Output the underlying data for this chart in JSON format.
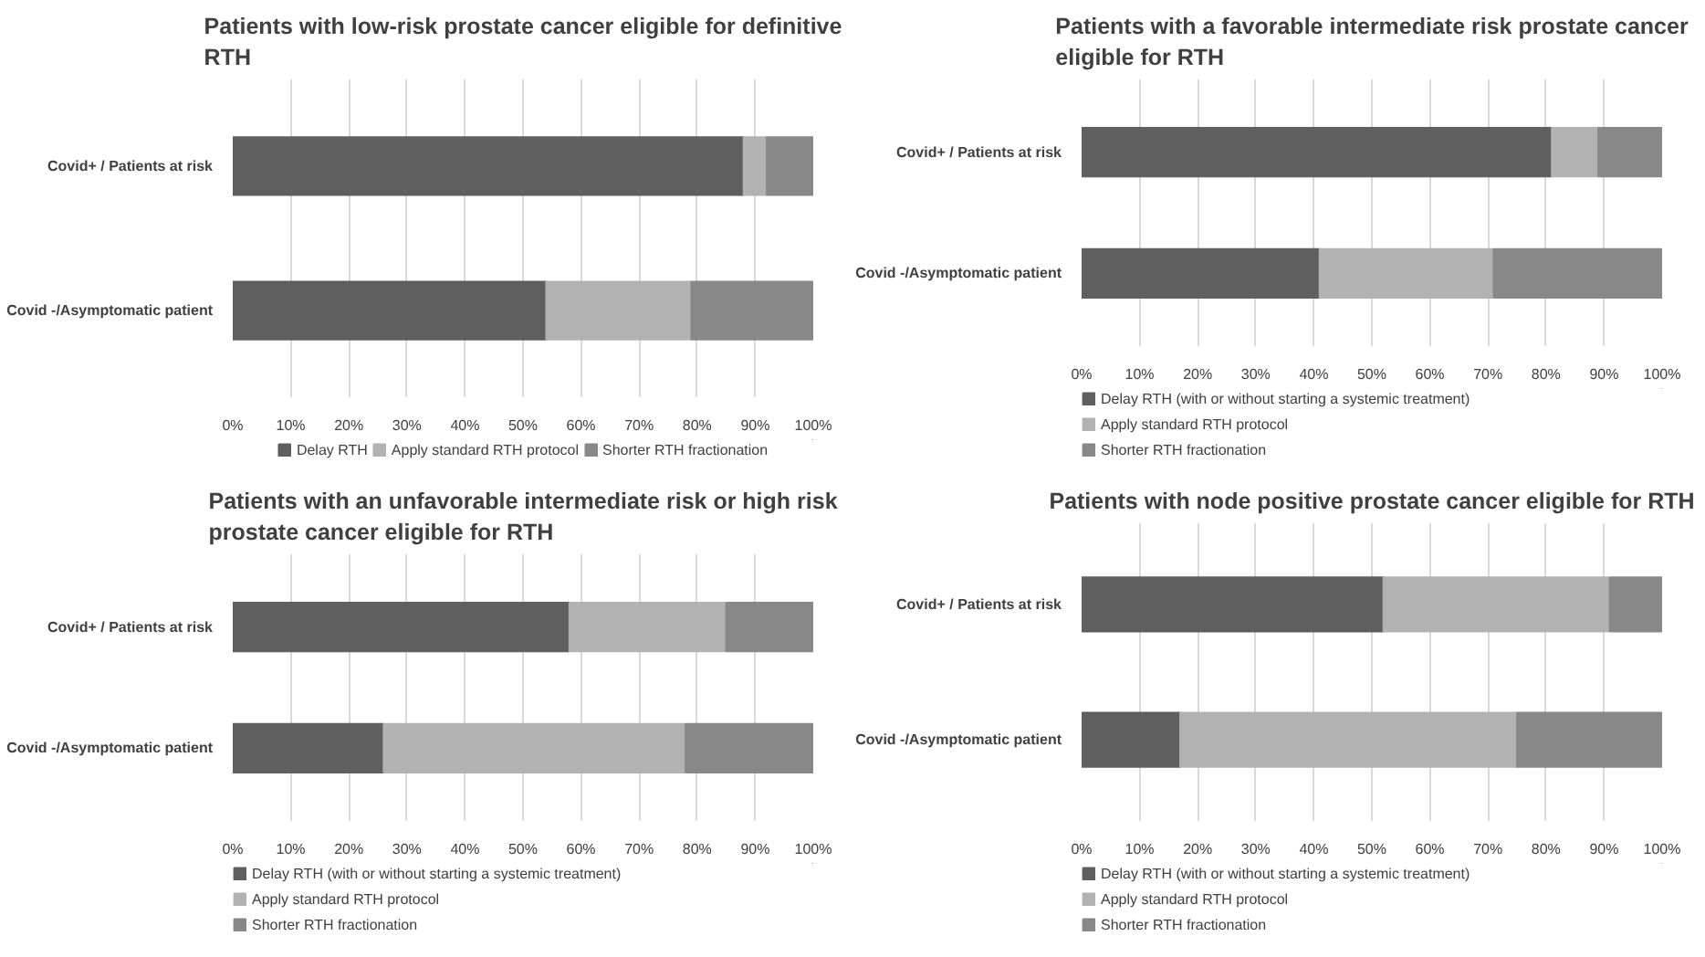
{
  "chart_data": [
    {
      "type": "bar",
      "orientation": "horizontal",
      "stacked": true,
      "title": "Patients with low-risk prostate cancer eligible for definitive RTH",
      "categories": [
        "Covid+ / Patients at risk",
        "Covid -/Asymptomatic patient"
      ],
      "xlim": [
        0,
        100
      ],
      "xticks": [
        {
          "value": 0,
          "label": "0%"
        },
        {
          "value": 10,
          "label": "10%"
        },
        {
          "value": 20,
          "label": "20%"
        },
        {
          "value": 30,
          "label": "30%"
        },
        {
          "value": 40,
          "label": "40%"
        },
        {
          "value": 50,
          "label": "50%"
        },
        {
          "value": 60,
          "label": "60%"
        },
        {
          "value": 70,
          "label": "70%"
        },
        {
          "value": 80,
          "label": "80%"
        },
        {
          "value": 90,
          "label": "90%"
        },
        {
          "value": 100,
          "label": "100%"
        }
      ],
      "grid": "x",
      "legend": "bottom",
      "series": [
        {
          "name": "Delay RTH",
          "color": "#5f5f5f",
          "values": [
            88,
            54
          ]
        },
        {
          "name": "Apply standard RTH protocol",
          "color": "#b2b2b2",
          "values": [
            4,
            25
          ]
        },
        {
          "name": "Shorter RTH fractionation",
          "color": "#888888",
          "values": [
            8,
            21
          ]
        }
      ]
    },
    {
      "type": "bar",
      "orientation": "horizontal",
      "stacked": true,
      "title": "Patients with a favorable intermediate risk prostate cancer eligible for RTH",
      "categories": [
        "Covid+ / Patients at risk",
        "Covid -/Asymptomatic patient"
      ],
      "xlim": [
        0,
        100
      ],
      "xticks": [
        {
          "value": 0,
          "label": "0%"
        },
        {
          "value": 10,
          "label": "10%"
        },
        {
          "value": 20,
          "label": "20%"
        },
        {
          "value": 30,
          "label": "30%"
        },
        {
          "value": 40,
          "label": "40%"
        },
        {
          "value": 50,
          "label": "50%"
        },
        {
          "value": 60,
          "label": "60%"
        },
        {
          "value": 70,
          "label": "70%"
        },
        {
          "value": 80,
          "label": "80%"
        },
        {
          "value": 90,
          "label": "90%"
        },
        {
          "value": 100,
          "label": "100%"
        }
      ],
      "grid": "x",
      "legend": "bottom",
      "series": [
        {
          "name": "Delay RTH (with or without starting a systemic treatment)",
          "color": "#5f5f5f",
          "values": [
            81,
            41
          ]
        },
        {
          "name": "Apply standard RTH protocol",
          "color": "#b2b2b2",
          "values": [
            8,
            30
          ]
        },
        {
          "name": "Shorter RTH fractionation",
          "color": "#888888",
          "values": [
            11,
            29
          ]
        }
      ]
    },
    {
      "type": "bar",
      "orientation": "horizontal",
      "stacked": true,
      "title": "Patients with an unfavorable intermediate risk or high risk prostate cancer eligible for RTH",
      "categories": [
        "Covid+ / Patients at risk",
        "Covid -/Asymptomatic patient"
      ],
      "xlim": [
        0,
        100
      ],
      "xticks": [
        {
          "value": 0,
          "label": "0%"
        },
        {
          "value": 10,
          "label": "10%"
        },
        {
          "value": 20,
          "label": "20%"
        },
        {
          "value": 30,
          "label": "30%"
        },
        {
          "value": 40,
          "label": "40%"
        },
        {
          "value": 50,
          "label": "50%"
        },
        {
          "value": 60,
          "label": "60%"
        },
        {
          "value": 70,
          "label": "70%"
        },
        {
          "value": 80,
          "label": "80%"
        },
        {
          "value": 90,
          "label": "90%"
        },
        {
          "value": 100,
          "label": "100%"
        }
      ],
      "grid": "x",
      "legend": "bottom",
      "series": [
        {
          "name": "Delay RTH (with or without starting a systemic treatment)",
          "color": "#5f5f5f",
          "values": [
            58,
            26
          ]
        },
        {
          "name": "Apply standard RTH protocol",
          "color": "#b2b2b2",
          "values": [
            27,
            52
          ]
        },
        {
          "name": "Shorter RTH fractionation",
          "color": "#888888",
          "values": [
            15,
            22
          ]
        }
      ]
    },
    {
      "type": "bar",
      "orientation": "horizontal",
      "stacked": true,
      "title": "Patients with node positive prostate cancer eligible for RTH",
      "categories": [
        "Covid+ / Patients at risk",
        "Covid -/Asymptomatic patient"
      ],
      "xlim": [
        0,
        100
      ],
      "xticks": [
        {
          "value": 0,
          "label": "0%"
        },
        {
          "value": 10,
          "label": "10%"
        },
        {
          "value": 20,
          "label": "20%"
        },
        {
          "value": 30,
          "label": "30%"
        },
        {
          "value": 40,
          "label": "40%"
        },
        {
          "value": 50,
          "label": "50%"
        },
        {
          "value": 60,
          "label": "60%"
        },
        {
          "value": 70,
          "label": "70%"
        },
        {
          "value": 80,
          "label": "80%"
        },
        {
          "value": 90,
          "label": "90%"
        },
        {
          "value": 100,
          "label": "100%"
        }
      ],
      "grid": "x",
      "legend": "bottom",
      "series": [
        {
          "name": "Delay RTH (with or without starting a systemic treatment)",
          "color": "#5f5f5f",
          "values": [
            52,
            17
          ]
        },
        {
          "name": "Apply standard RTH protocol",
          "color": "#b2b2b2",
          "values": [
            39,
            58
          ]
        },
        {
          "name": "Shorter RTH fractionation",
          "color": "#888888",
          "values": [
            9,
            25
          ]
        }
      ]
    }
  ]
}
